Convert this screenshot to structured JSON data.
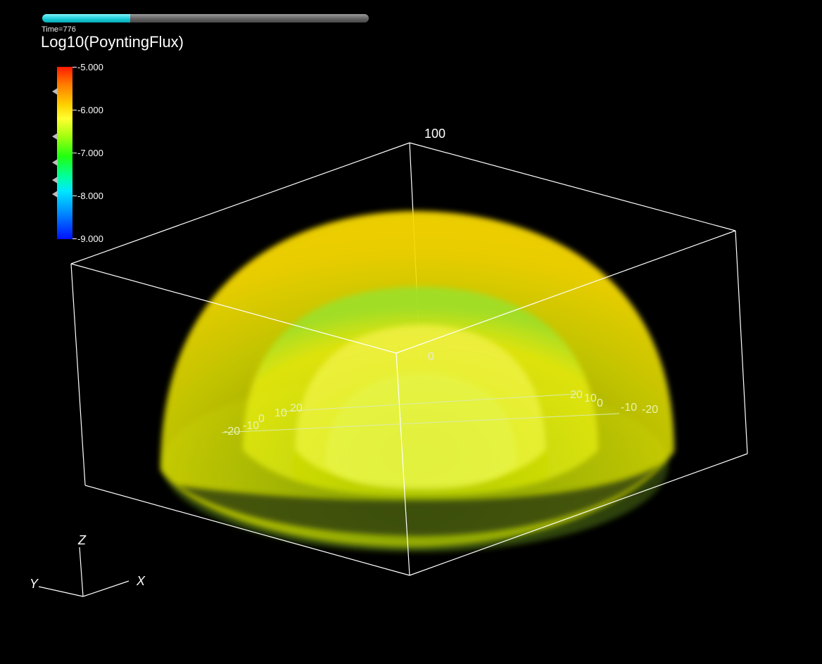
{
  "animation": {
    "time_label": "Time=776",
    "progress_fraction": 0.27
  },
  "plot": {
    "variable_title": "Log10(PoyntingFlux)"
  },
  "colorbar": {
    "ticks": [
      "-5.000",
      "-6.000",
      "-7.000",
      "-8.000",
      "-9.000"
    ]
  },
  "box_labels": {
    "top_label": "100",
    "origin_label": "0"
  },
  "floor_ticks": {
    "left": [
      "-20",
      "-10",
      "0",
      "10",
      "20"
    ],
    "right": [
      "20",
      "10",
      "0",
      "-10",
      "-20"
    ]
  },
  "triad": {
    "x": "X",
    "y": "Y",
    "z": "Z"
  },
  "colors": {
    "progress": "#16c9d6",
    "background": "#000000"
  }
}
